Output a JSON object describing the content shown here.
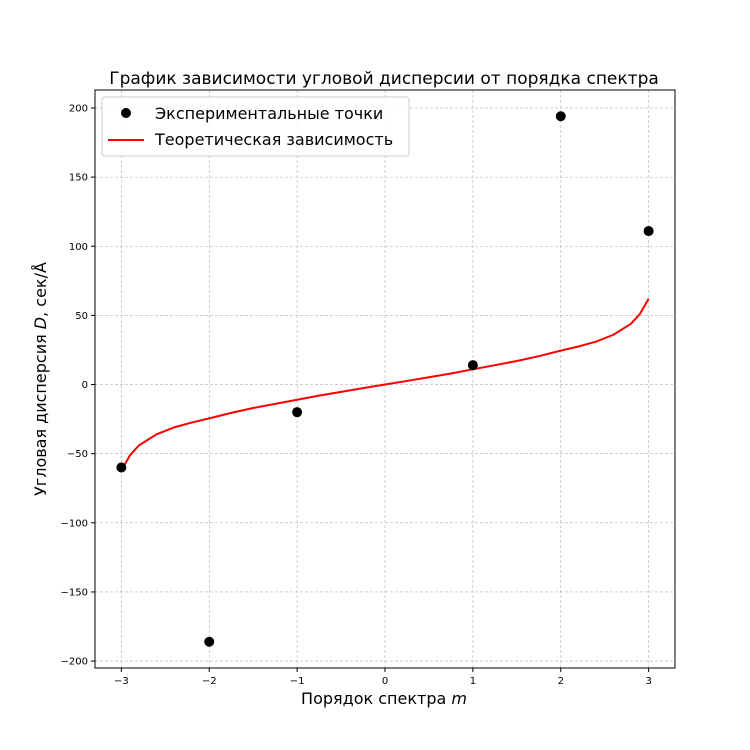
{
  "chart_data": {
    "type": "scatter",
    "title": "График зависимости угловой дисперсии от порядка спектра",
    "xlabel": {
      "text": "Порядок спектра ",
      "symbol": "m"
    },
    "ylabel": {
      "text": "Угловая дисперсия ",
      "symbol": "D",
      "suffix": ", сек/Å"
    },
    "xlim": [
      -3.3,
      3.3
    ],
    "ylim": [
      -205,
      213
    ],
    "xticks": [
      -3,
      -2,
      -1,
      0,
      1,
      2,
      3
    ],
    "xtick_labels": [
      "−3",
      "−2",
      "−1",
      "0",
      "1",
      "2",
      "3"
    ],
    "yticks": [
      -200,
      -150,
      -100,
      -50,
      0,
      50,
      100,
      150,
      200
    ],
    "ytick_labels": [
      "−200",
      "−150",
      "−100",
      "−50",
      "0",
      "50",
      "100",
      "150",
      "200"
    ],
    "grid": true,
    "legend_position": "upper-left",
    "series": [
      {
        "name": "Экспериментальные точки",
        "kind": "scatter",
        "color": "#000000",
        "x": [
          -3,
          -2,
          -1,
          1,
          2,
          3
        ],
        "y": [
          -60,
          -186,
          -20,
          14,
          194,
          111
        ]
      },
      {
        "name": "Теоретическая зависимость",
        "kind": "line",
        "color": "#ff0000",
        "x": [
          -3.0,
          -2.9,
          -2.8,
          -2.6,
          -2.4,
          -2.2,
          -2.0,
          -1.75,
          -1.5,
          -1.25,
          -1.0,
          -0.75,
          -0.5,
          -0.25,
          0.0,
          0.25,
          0.5,
          0.75,
          1.0,
          1.25,
          1.5,
          1.75,
          2.0,
          2.2,
          2.4,
          2.6,
          2.8,
          2.9,
          3.0
        ],
        "y": [
          -62,
          -51,
          -44,
          -36,
          -31,
          -27.5,
          -24.5,
          -20.5,
          -17,
          -14,
          -11,
          -8,
          -5.3,
          -2.6,
          0,
          2.6,
          5.3,
          8,
          11,
          14,
          17,
          20.5,
          24.5,
          27.5,
          31,
          36,
          44,
          51,
          62
        ]
      }
    ]
  }
}
